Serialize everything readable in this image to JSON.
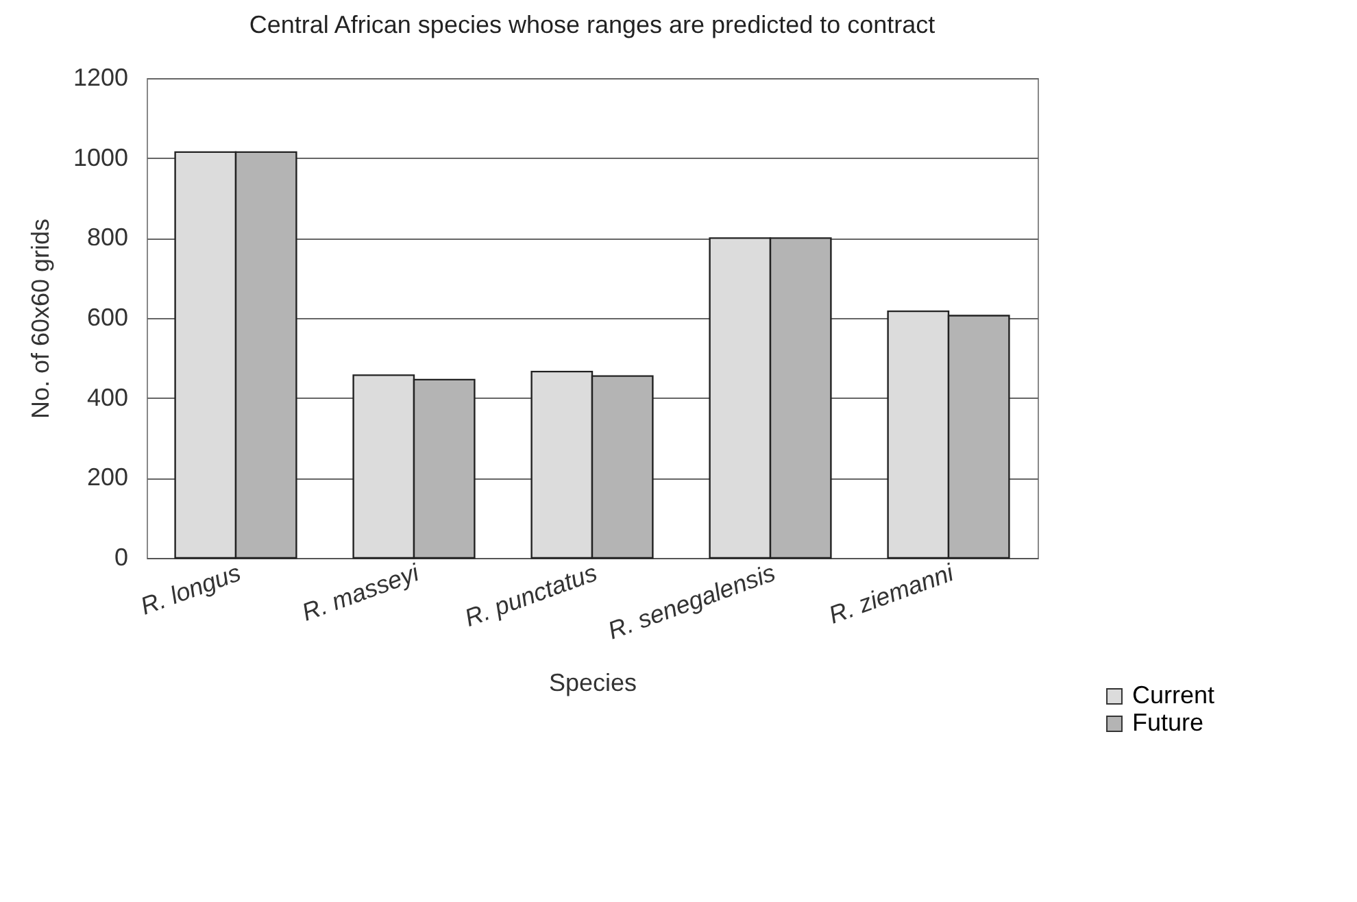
{
  "chart_data": {
    "type": "bar",
    "title": "Central African species whose ranges are predicted to contract",
    "xlabel": "Species",
    "ylabel": "No. of 60x60 grids",
    "categories": [
      "R. longus",
      "R. masseyi",
      "R. punctatus",
      "R. senegalensis",
      "R. ziemanni"
    ],
    "series": [
      {
        "name": "Current",
        "color": "#dcdcdc",
        "values": [
          1015,
          457,
          466,
          800,
          617
        ]
      },
      {
        "name": "Future",
        "color": "#b4b4b4",
        "values": [
          1015,
          446,
          455,
          800,
          606
        ]
      }
    ],
    "ylim": [
      0,
      1200
    ],
    "yticks": [
      0,
      200,
      400,
      600,
      800,
      1000,
      1200
    ],
    "grid": "y",
    "legend": "bottom right"
  }
}
